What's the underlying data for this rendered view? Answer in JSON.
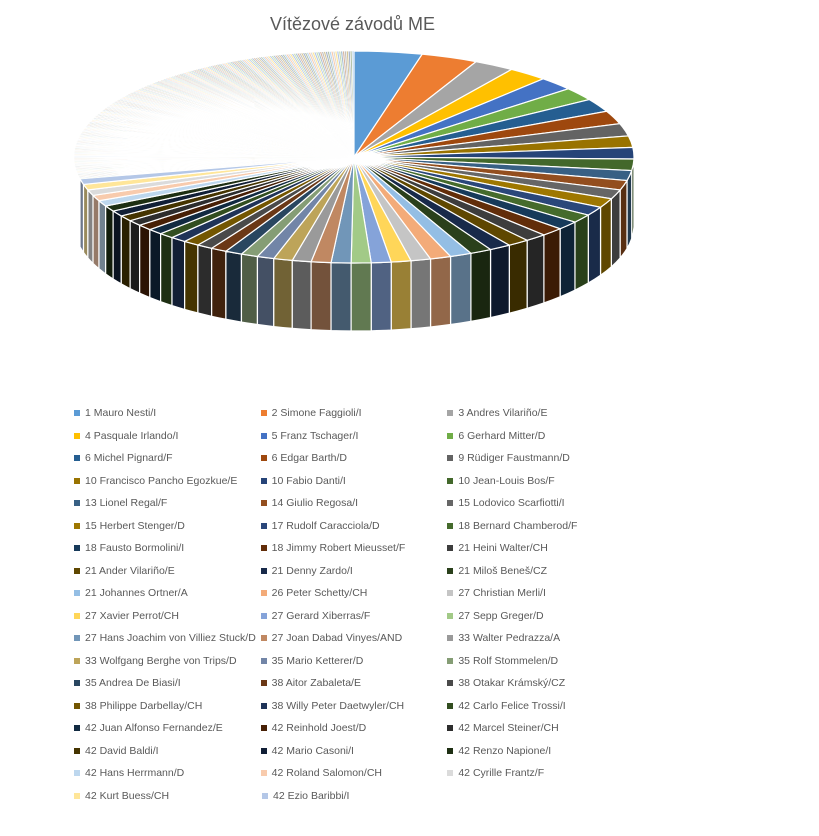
{
  "chart_data": {
    "type": "pie",
    "title": "Vítězové závodů ME",
    "legend_position": "bottom",
    "palette": [
      "#5b9bd5",
      "#ed7d31",
      "#a5a5a5",
      "#ffc000",
      "#4472c4",
      "#70ad47",
      "#255e91",
      "#9e480e",
      "#636363",
      "#997300",
      "#264478",
      "#43682b"
    ],
    "categories": [
      "1 Mauro Nesti/I",
      "2 Simone Faggioli/I",
      "3 Andres Vilariño/E",
      "4 Pasquale Irlando/I",
      "5 Franz Tschager/I",
      "6 Gerhard Mitter/D",
      "6 Michel Pignard/F",
      "6 Edgar Barth/D",
      "9 Rüdiger Faustmann/D",
      "10 Francisco Pancho Egozkue/E",
      "10 Fabio Danti/I",
      "10 Jean-Louis Bos/F",
      "13 Lionel Regal/F",
      "14 Giulio Regosa/I",
      "15 Lodovico Scarfiotti/I",
      "15 Herbert Stenger/D",
      "17 Rudolf Caracciola/D",
      "18 Bernard Chamberod/F",
      "18 Fausto Bormolini/I",
      "18 Jimmy Robert Mieusset/F",
      "21 Heini Walter/CH",
      "21 Ander Vilariño/E",
      "21 Denny Zardo/I",
      "21 Miloš Beneš/CZ",
      "21 Johannes Ortner/A",
      "26 Peter Schetty/CH",
      "27 Christian Merli/I",
      "27 Xavier Perrot/CH",
      "27 Gerard Xiberras/F",
      "27 Sepp Greger/D",
      "27 Hans Joachim von Villiez Stuck/D",
      "27 Joan Dabad Vinyes/AND",
      "33 Walter Pedrazza/A",
      "33 Wolfgang Berghe von Trips/D",
      "35 Mario Ketterer/D",
      "35 Rolf Stommelen/D",
      "35 Andrea De Biasi/I",
      "38 Aitor Zabaleta/E",
      "38 Otakar Krámský/CZ",
      "38 Philippe Darbellay/CH",
      "38 Willy Peter Daetwyler/CH",
      "42 Carlo Felice Trossi/I",
      "42 Juan Alfonso Fernandez/E",
      "42 Reinhold Joest/D",
      "42 Marcel Steiner/CH",
      "42 David Baldi/I",
      "42 Mario Casoni/I",
      "42 Renzo Napione/I",
      "42 Hans Herrmann/D",
      "42 Roland Salomon/CH",
      "42 Cyrille Frantz/F",
      "42 Kurt Buess/CH",
      "42 Ezio Baribbi/I"
    ],
    "values": [
      72,
      60,
      43,
      42,
      38,
      37,
      37,
      37,
      35,
      32,
      32,
      32,
      28,
      27,
      26,
      26,
      25,
      24,
      24,
      24,
      23,
      23,
      23,
      23,
      23,
      22,
      21,
      21,
      21,
      21,
      21,
      21,
      20,
      20,
      18,
      18,
      18,
      17,
      17,
      17,
      17,
      16,
      16,
      16,
      16,
      16,
      16,
      16,
      16,
      16,
      16,
      16,
      16
    ],
    "tail_slices": 260,
    "tail_value": 2
  }
}
